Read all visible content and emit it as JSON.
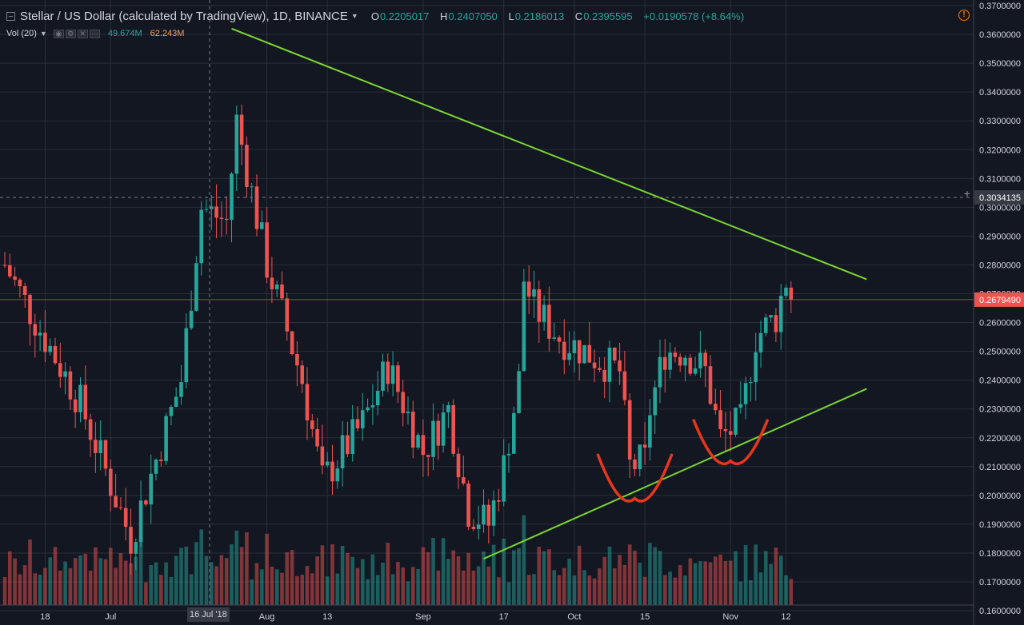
{
  "header": {
    "symbol_title": "Stellar / US Dollar (calculated by TradingView), 1D, BINANCE",
    "open_key": "O",
    "open": "0.2205017",
    "high_key": "H",
    "high": "0.2407050",
    "low_key": "L",
    "low": "0.2186013",
    "close_key": "C",
    "close": "0.2395595",
    "change": "+0.0190578 (+8.64%)",
    "menu_icon": "chevron-down-icon",
    "alert_icon": "alert-icon",
    "alert_glyph": "!"
  },
  "volume_indicator": {
    "label": "Vol (20)",
    "value_a": "49.674M",
    "value_b": "62.243M",
    "value_a_color": "#26a69a",
    "value_b_color": "#f7a35c"
  },
  "crosshair": {
    "price_label": "0.3034135",
    "date_label": "16 Jul '18",
    "plus_icon": "+"
  },
  "last_price_label": "0.2679490",
  "colors": {
    "background": "#131722",
    "up": "#26a69a",
    "down": "#ef5350",
    "trendline": "#7ad531",
    "annotation": "#e8361d",
    "last_price": "#ef5350",
    "axis_text": "#d1d4dc"
  },
  "chart_data": {
    "type": "candlestick",
    "price_axis": {
      "ylim": [
        0.16,
        0.37
      ],
      "ticks": [
        "0.3700000",
        "0.3600000",
        "0.3500000",
        "0.3400000",
        "0.3300000",
        "0.3200000",
        "0.3100000",
        "0.3000000",
        "0.2900000",
        "0.2800000",
        "0.2700000",
        "0.2600000",
        "0.2500000",
        "0.2400000",
        "0.2300000",
        "0.2200000",
        "0.2100000",
        "0.2000000",
        "0.1900000",
        "0.1800000",
        "0.1700000",
        "0.1600000"
      ]
    },
    "time_axis": {
      "start_date": "2018-06-10",
      "ticks": [
        {
          "label": "18",
          "date": "2018-06-18"
        },
        {
          "label": "Jul",
          "date": "2018-07-01"
        },
        {
          "label": "Aug",
          "date": "2018-08-01"
        },
        {
          "label": "13",
          "date": "2018-08-13"
        },
        {
          "label": "Sep",
          "date": "2018-09-01"
        },
        {
          "label": "17",
          "date": "2018-09-17"
        },
        {
          "label": "Oct",
          "date": "2018-10-01"
        },
        {
          "label": "15",
          "date": "2018-10-15"
        },
        {
          "label": "Nov",
          "date": "2018-11-01"
        },
        {
          "label": "12",
          "date": "2018-11-12"
        }
      ]
    },
    "ohlc_key_points": [
      [
        "2018-06-10",
        0.28
      ],
      [
        "2018-06-25",
        0.232
      ],
      [
        "2018-07-05",
        0.185
      ],
      [
        "2018-07-15",
        0.24
      ],
      [
        "2018-07-19",
        0.3
      ],
      [
        "2018-07-24",
        0.295
      ],
      [
        "2018-07-26",
        0.33
      ],
      [
        "2018-08-01",
        0.28
      ],
      [
        "2018-08-08",
        0.24
      ],
      [
        "2018-08-12",
        0.205
      ],
      [
        "2018-08-20",
        0.225
      ],
      [
        "2018-08-25",
        0.245
      ],
      [
        "2018-09-01",
        0.215
      ],
      [
        "2018-09-06",
        0.23
      ],
      [
        "2018-09-10",
        0.195
      ],
      [
        "2018-09-14",
        0.19
      ],
      [
        "2018-09-17",
        0.21
      ],
      [
        "2018-09-20",
        0.24
      ],
      [
        "2018-09-21",
        0.275
      ],
      [
        "2018-09-23",
        0.265
      ],
      [
        "2018-09-28",
        0.255
      ],
      [
        "2018-10-05",
        0.248
      ],
      [
        "2018-10-10",
        0.243
      ],
      [
        "2018-10-12",
        0.21
      ],
      [
        "2018-10-15",
        0.212
      ],
      [
        "2018-10-16",
        0.23
      ],
      [
        "2018-10-19",
        0.25
      ],
      [
        "2018-10-23",
        0.25
      ],
      [
        "2018-10-27",
        0.243
      ],
      [
        "2018-10-30",
        0.22
      ],
      [
        "2018-11-03",
        0.225
      ],
      [
        "2018-11-06",
        0.255
      ],
      [
        "2018-11-10",
        0.262
      ],
      [
        "2018-11-12",
        0.275
      ],
      [
        "2018-11-13",
        0.268
      ]
    ],
    "last_close": 0.267949,
    "trendlines": [
      {
        "name": "resistance",
        "from": [
          "2018-07-25",
          0.362
        ],
        "to": [
          "2018-11-28",
          0.275
        ]
      },
      {
        "name": "support",
        "from": [
          "2018-09-13",
          0.178
        ],
        "to": [
          "2018-11-28",
          0.237
        ]
      }
    ],
    "annotations": [
      {
        "name": "left-cup",
        "center": [
          "2018-10-13",
          0.2085
        ],
        "bottom": 0.199
      },
      {
        "name": "right-cup",
        "center": [
          "2018-11-01",
          0.2205
        ],
        "bottom": 0.212
      }
    ],
    "volume_series": {
      "name": "Vol (20)"
    }
  }
}
